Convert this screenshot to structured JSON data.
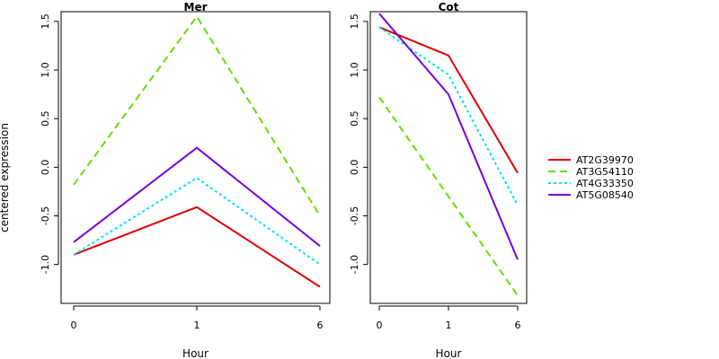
{
  "ylabel": "centered expression",
  "chart_data": [
    {
      "type": "line",
      "title": "Mer",
      "xlabel": "Hour",
      "categories": [
        "0",
        "1",
        "6"
      ],
      "ylim": [
        -1.4,
        1.6
      ],
      "yticks": [
        "-1.0",
        "-0.5",
        "0.0",
        "0.5",
        "1.0",
        "1.5"
      ],
      "ytick_values": [
        -1.0,
        -0.5,
        0.0,
        0.5,
        1.0,
        1.5
      ],
      "series": [
        {
          "name": "AT2G39970",
          "values": [
            -0.9,
            -0.41,
            -1.23
          ],
          "color": "#dd0000",
          "dash": "solid"
        },
        {
          "name": "AT3G54110",
          "values": [
            -0.18,
            1.55,
            -0.5
          ],
          "color": "#66dd00",
          "dash": "dashed"
        },
        {
          "name": "AT4G33350",
          "values": [
            -0.9,
            -0.11,
            -1.0
          ],
          "color": "#00e5e5",
          "dash": "dotted"
        },
        {
          "name": "AT5G08540",
          "values": [
            -0.77,
            0.2,
            -0.81
          ],
          "color": "#7700dd",
          "dash": "solid"
        }
      ]
    },
    {
      "type": "line",
      "title": "Cot",
      "xlabel": "Hour",
      "categories": [
        "0",
        "1",
        "6"
      ],
      "ylim": [
        -1.4,
        1.6
      ],
      "yticks": [
        "-1.0",
        "-0.5",
        "0.0",
        "0.5",
        "1.0",
        "1.5"
      ],
      "ytick_values": [
        -1.0,
        -0.5,
        0.0,
        0.5,
        1.0,
        1.5
      ],
      "series": [
        {
          "name": "AT2G39970",
          "values": [
            1.44,
            1.15,
            -0.06
          ],
          "color": "#dd0000",
          "dash": "solid"
        },
        {
          "name": "AT3G54110",
          "values": [
            0.72,
            -0.3,
            -1.32
          ],
          "color": "#66dd00",
          "dash": "dashed"
        },
        {
          "name": "AT4G33350",
          "values": [
            1.44,
            0.95,
            -0.39
          ],
          "color": "#00e5e5",
          "dash": "dotted"
        },
        {
          "name": "AT5G08540",
          "values": [
            1.58,
            0.75,
            -0.95
          ],
          "color": "#7700dd",
          "dash": "solid"
        }
      ]
    }
  ],
  "legend": {
    "placement": "right",
    "entries": [
      {
        "label": "AT2G39970",
        "color": "#dd0000",
        "dash": "solid"
      },
      {
        "label": "AT3G54110",
        "color": "#66dd00",
        "dash": "dashed"
      },
      {
        "label": "AT4G33350",
        "color": "#00e5e5",
        "dash": "dotted"
      },
      {
        "label": "AT5G08540",
        "color": "#7700dd",
        "dash": "solid"
      }
    ]
  }
}
